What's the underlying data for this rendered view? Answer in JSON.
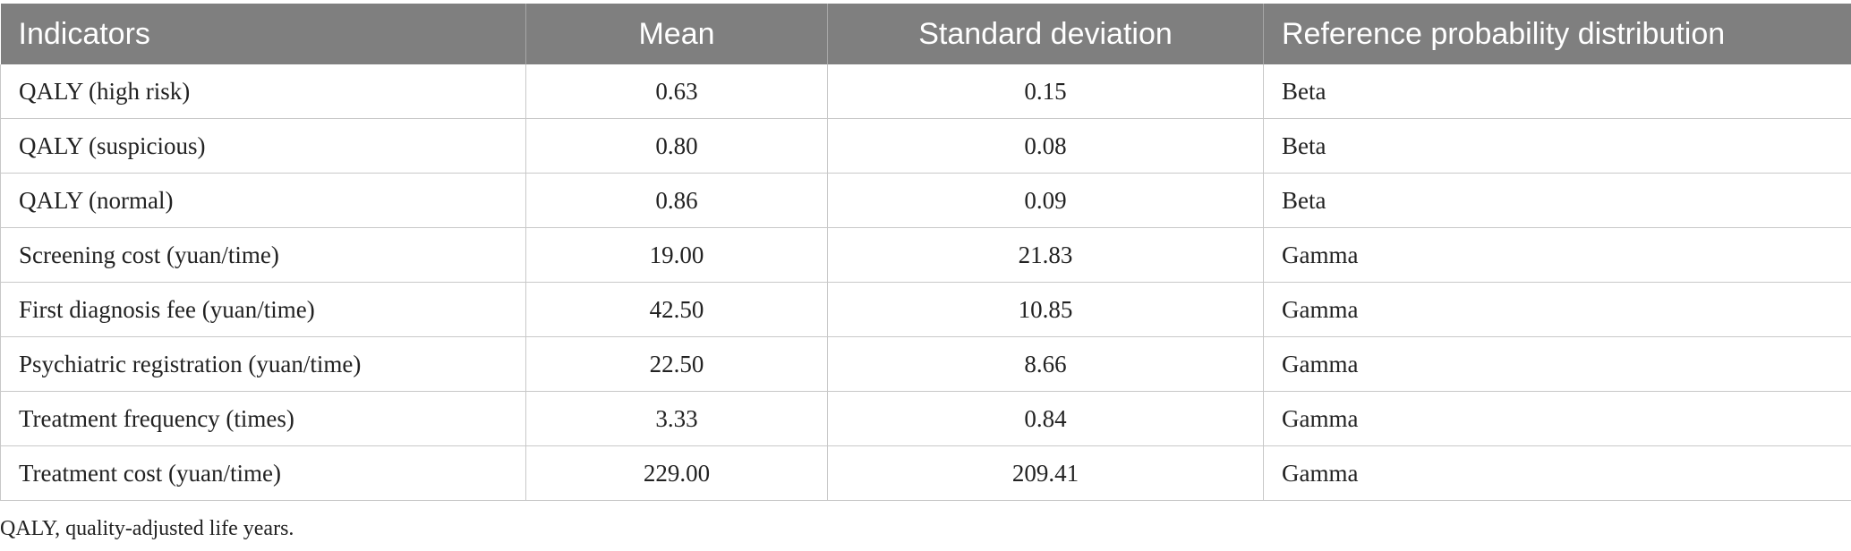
{
  "table": {
    "headers": [
      "Indicators",
      "Mean",
      "Standard deviation",
      "Reference probability distribution"
    ],
    "rows": [
      [
        "QALY (high risk)",
        "0.63",
        "0.15",
        "Beta"
      ],
      [
        "QALY (suspicious)",
        "0.80",
        "0.08",
        "Beta"
      ],
      [
        "QALY (normal)",
        "0.86",
        "0.09",
        "Beta"
      ],
      [
        "Screening cost (yuan/time)",
        "19.00",
        "21.83",
        "Gamma"
      ],
      [
        "First diagnosis fee (yuan/time)",
        "42.50",
        "10.85",
        "Gamma"
      ],
      [
        "Psychiatric registration (yuan/time)",
        "22.50",
        "8.66",
        "Gamma"
      ],
      [
        "Treatment frequency (times)",
        "3.33",
        "0.84",
        "Gamma"
      ],
      [
        "Treatment cost (yuan/time)",
        "229.00",
        "209.41",
        "Gamma"
      ]
    ],
    "footnote": "QALY, quality-adjusted life years."
  },
  "colors": {
    "header_bg": "#7f7f7f",
    "header_text": "#ffffff",
    "border": "#c8c8c8"
  }
}
